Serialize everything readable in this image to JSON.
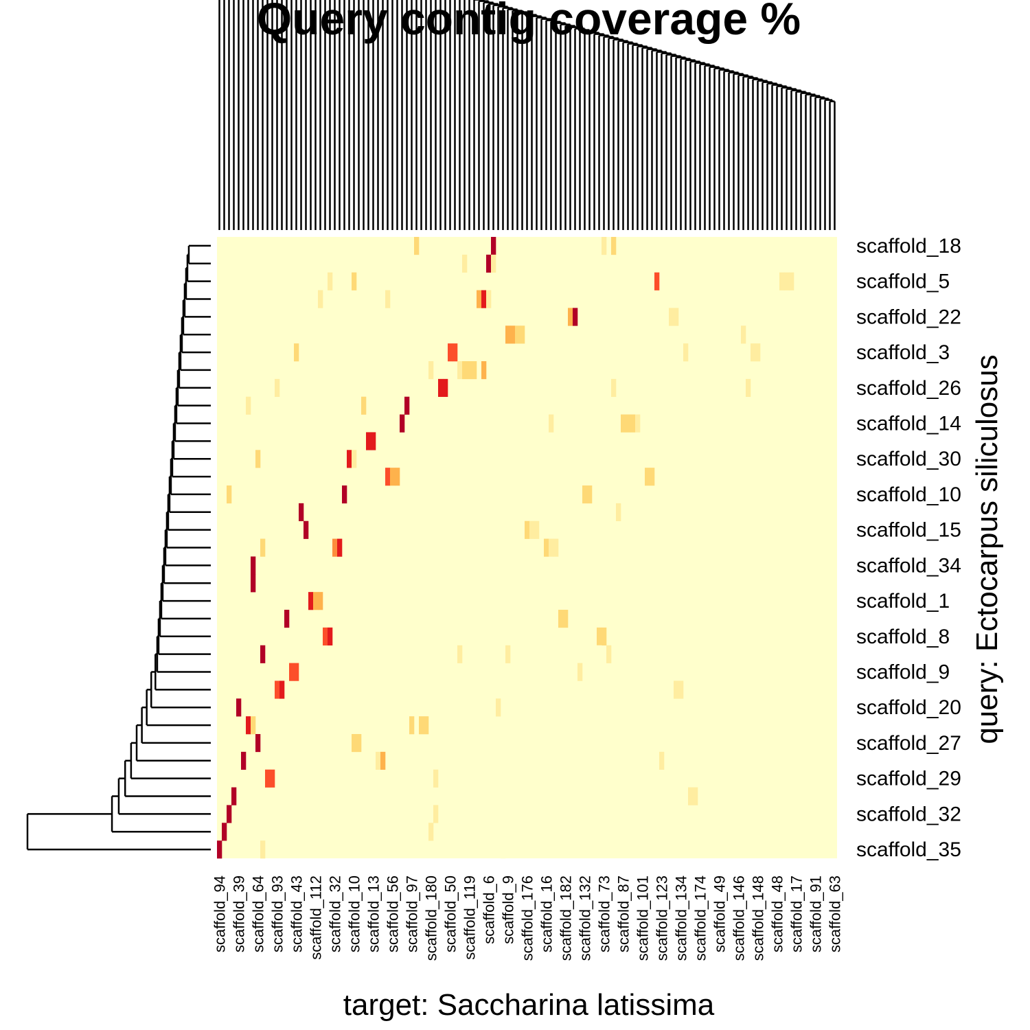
{
  "chart_data": {
    "type": "heatmap",
    "title": "Query contig coverage %",
    "x_label": "target: Saccharina latissima",
    "y_label": "query: Ectocarpus siliculosus",
    "zlim": [
      0,
      100
    ],
    "colors": [
      "#FFFFCC",
      "#FFEDA0",
      "#FED976",
      "#FEB24C",
      "#FD8D3C",
      "#FC4E2A",
      "#E31A1C",
      "#B10026"
    ],
    "categories": [
      "scaffold_94",
      null,
      null,
      null,
      "scaffold_39",
      null,
      null,
      null,
      "scaffold_64",
      null,
      null,
      null,
      "scaffold_93",
      null,
      null,
      null,
      "scaffold_43",
      null,
      null,
      null,
      "scaffold_112",
      null,
      null,
      null,
      "scaffold_32",
      null,
      null,
      null,
      "scaffold_10",
      null,
      null,
      null,
      "scaffold_13",
      null,
      null,
      null,
      "scaffold_56",
      null,
      null,
      null,
      "scaffold_97",
      null,
      null,
      null,
      "scaffold_180",
      null,
      null,
      null,
      "scaffold_50",
      null,
      null,
      null,
      "scaffold_119",
      null,
      null,
      null,
      "scaffold_6",
      null,
      null,
      null,
      "scaffold_9",
      null,
      null,
      null,
      "scaffold_176",
      null,
      null,
      null,
      "scaffold_16",
      null,
      null,
      null,
      "scaffold_182",
      null,
      null,
      null,
      "scaffold_132",
      null,
      null,
      null,
      "scaffold_73",
      null,
      null,
      null,
      "scaffold_87",
      null,
      null,
      null,
      "scaffold_101",
      null,
      null,
      null,
      "scaffold_123",
      null,
      null,
      null,
      "scaffold_134",
      null,
      null,
      null,
      "scaffold_174",
      null,
      null,
      null,
      "scaffold_49",
      null,
      null,
      null,
      "scaffold_146",
      null,
      null,
      null,
      "scaffold_148",
      null,
      null,
      null,
      "scaffold_48",
      null,
      null,
      null,
      "scaffold_17",
      null,
      null,
      null,
      "scaffold_91",
      null,
      null,
      null,
      "scaffold_63"
    ],
    "rows": [
      "scaffold_18",
      null,
      "scaffold_5",
      null,
      "scaffold_22",
      null,
      "scaffold_3",
      null,
      "scaffold_26",
      null,
      "scaffold_14",
      null,
      "scaffold_30",
      null,
      "scaffold_10",
      null,
      "scaffold_15",
      null,
      "scaffold_34",
      null,
      "scaffold_1",
      null,
      "scaffold_8",
      null,
      "scaffold_9",
      null,
      "scaffold_20",
      null,
      "scaffold_27",
      null,
      "scaffold_29",
      null,
      "scaffold_32",
      null,
      "scaffold_35"
    ],
    "cells": [
      [
        0,
        41,
        30
      ],
      [
        0,
        45,
        5
      ],
      [
        0,
        56,
        10
      ],
      [
        0,
        57,
        90
      ],
      [
        0,
        80,
        15
      ],
      [
        0,
        82,
        25
      ],
      [
        1,
        36,
        5
      ],
      [
        1,
        51,
        15
      ],
      [
        1,
        56,
        90
      ],
      [
        1,
        57,
        20
      ],
      [
        1,
        69,
        5
      ],
      [
        1,
        100,
        10
      ],
      [
        1,
        122,
        5
      ],
      [
        2,
        4,
        5
      ],
      [
        2,
        23,
        20
      ],
      [
        2,
        27,
        10
      ],
      [
        2,
        28,
        35
      ],
      [
        2,
        87,
        5
      ],
      [
        2,
        91,
        70
      ],
      [
        2,
        95,
        10
      ],
      [
        2,
        105,
        10
      ],
      [
        2,
        117,
        15
      ],
      [
        2,
        118,
        20
      ],
      [
        2,
        119,
        20
      ],
      [
        3,
        21,
        20
      ],
      [
        3,
        35,
        15
      ],
      [
        3,
        54,
        40
      ],
      [
        3,
        55,
        85
      ],
      [
        3,
        56,
        15
      ],
      [
        4,
        73,
        45
      ],
      [
        4,
        74,
        90
      ],
      [
        4,
        94,
        20
      ],
      [
        4,
        95,
        20
      ],
      [
        5,
        60,
        45
      ],
      [
        5,
        61,
        45
      ],
      [
        5,
        62,
        35
      ],
      [
        5,
        63,
        35
      ],
      [
        5,
        85,
        5
      ],
      [
        5,
        100,
        10
      ],
      [
        5,
        107,
        10
      ],
      [
        5,
        108,
        10
      ],
      [
        5,
        109,
        15
      ],
      [
        6,
        16,
        30
      ],
      [
        6,
        48,
        65
      ],
      [
        6,
        49,
        70
      ],
      [
        6,
        97,
        15
      ],
      [
        6,
        111,
        15
      ],
      [
        6,
        112,
        15
      ],
      [
        7,
        44,
        15
      ],
      [
        7,
        50,
        20
      ],
      [
        7,
        51,
        35
      ],
      [
        7,
        52,
        35
      ],
      [
        7,
        53,
        35
      ],
      [
        7,
        55,
        40
      ],
      [
        7,
        94,
        5
      ],
      [
        8,
        9,
        10
      ],
      [
        8,
        12,
        20
      ],
      [
        8,
        27,
        10
      ],
      [
        8,
        30,
        5
      ],
      [
        8,
        46,
        75
      ],
      [
        8,
        47,
        80
      ],
      [
        8,
        59,
        5
      ],
      [
        8,
        80,
        10
      ],
      [
        8,
        82,
        20
      ],
      [
        8,
        110,
        15
      ],
      [
        9,
        6,
        20
      ],
      [
        9,
        30,
        30
      ],
      [
        9,
        39,
        95
      ],
      [
        10,
        14,
        5
      ],
      [
        10,
        38,
        95
      ],
      [
        10,
        69,
        20
      ],
      [
        10,
        84,
        30
      ],
      [
        10,
        85,
        30
      ],
      [
        10,
        86,
        25
      ],
      [
        10,
        87,
        20
      ],
      [
        11,
        12,
        10
      ],
      [
        11,
        31,
        75
      ],
      [
        11,
        32,
        85
      ],
      [
        11,
        70,
        5
      ],
      [
        11,
        114,
        5
      ],
      [
        12,
        8,
        35
      ],
      [
        12,
        27,
        85
      ],
      [
        12,
        28,
        20
      ],
      [
        13,
        1,
        10
      ],
      [
        13,
        17,
        5
      ],
      [
        13,
        35,
        70
      ],
      [
        13,
        36,
        40
      ],
      [
        13,
        37,
        40
      ],
      [
        13,
        89,
        25
      ],
      [
        13,
        90,
        25
      ],
      [
        14,
        2,
        35
      ],
      [
        14,
        26,
        90
      ],
      [
        14,
        76,
        25
      ],
      [
        14,
        77,
        25
      ],
      [
        14,
        104,
        10
      ],
      [
        15,
        17,
        95
      ],
      [
        15,
        83,
        20
      ],
      [
        15,
        120,
        5
      ],
      [
        16,
        9,
        5
      ],
      [
        16,
        18,
        90
      ],
      [
        16,
        55,
        10
      ],
      [
        16,
        64,
        35
      ],
      [
        16,
        65,
        20
      ],
      [
        16,
        66,
        20
      ],
      [
        16,
        93,
        5
      ],
      [
        17,
        9,
        30
      ],
      [
        17,
        24,
        60
      ],
      [
        17,
        25,
        80
      ],
      [
        17,
        68,
        35
      ],
      [
        17,
        69,
        20
      ],
      [
        17,
        70,
        20
      ],
      [
        18,
        7,
        95
      ],
      [
        18,
        53,
        10
      ],
      [
        19,
        7,
        95
      ],
      [
        20,
        19,
        75
      ],
      [
        20,
        20,
        40
      ],
      [
        20,
        21,
        40
      ],
      [
        20,
        52,
        5
      ],
      [
        20,
        82,
        10
      ],
      [
        20,
        102,
        5
      ],
      [
        21,
        14,
        95
      ],
      [
        21,
        52,
        5
      ],
      [
        21,
        71,
        35
      ],
      [
        21,
        72,
        35
      ],
      [
        21,
        86,
        5
      ],
      [
        21,
        94,
        10
      ],
      [
        22,
        22,
        65
      ],
      [
        22,
        23,
        75
      ],
      [
        22,
        47,
        10
      ],
      [
        22,
        79,
        25
      ],
      [
        22,
        80,
        25
      ],
      [
        23,
        9,
        95
      ],
      [
        23,
        50,
        15
      ],
      [
        23,
        60,
        15
      ],
      [
        23,
        70,
        5
      ],
      [
        23,
        79,
        10
      ],
      [
        23,
        81,
        20
      ],
      [
        24,
        15,
        70
      ],
      [
        24,
        16,
        70
      ],
      [
        24,
        46,
        5
      ],
      [
        24,
        53,
        5
      ],
      [
        24,
        75,
        15
      ],
      [
        25,
        12,
        70
      ],
      [
        25,
        13,
        80
      ],
      [
        25,
        68,
        5
      ],
      [
        25,
        95,
        15
      ],
      [
        25,
        96,
        15
      ],
      [
        26,
        4,
        95
      ],
      [
        26,
        46,
        5
      ],
      [
        26,
        58,
        20
      ],
      [
        27,
        6,
        80
      ],
      [
        27,
        7,
        30
      ],
      [
        27,
        24,
        5
      ],
      [
        27,
        30,
        5
      ],
      [
        27,
        40,
        25
      ],
      [
        27,
        42,
        35
      ],
      [
        27,
        43,
        35
      ],
      [
        28,
        8,
        90
      ],
      [
        28,
        28,
        35
      ],
      [
        28,
        29,
        30
      ],
      [
        28,
        75,
        5
      ],
      [
        29,
        1,
        5
      ],
      [
        29,
        5,
        95
      ],
      [
        29,
        33,
        20
      ],
      [
        29,
        34,
        40
      ],
      [
        29,
        52,
        5
      ],
      [
        29,
        88,
        5
      ],
      [
        29,
        92,
        20
      ],
      [
        30,
        10,
        70
      ],
      [
        30,
        11,
        70
      ],
      [
        30,
        45,
        15
      ],
      [
        30,
        59,
        5
      ],
      [
        30,
        101,
        5
      ],
      [
        31,
        1,
        5
      ],
      [
        31,
        3,
        95
      ],
      [
        31,
        13,
        5
      ],
      [
        31,
        43,
        10
      ],
      [
        31,
        98,
        15
      ],
      [
        31,
        99,
        15
      ],
      [
        32,
        2,
        95
      ],
      [
        32,
        45,
        20
      ],
      [
        32,
        59,
        5
      ],
      [
        33,
        1,
        95
      ],
      [
        33,
        30,
        5
      ],
      [
        33,
        44,
        20
      ],
      [
        33,
        93,
        10
      ],
      [
        34,
        0,
        95
      ],
      [
        34,
        9,
        15
      ],
      [
        34,
        59,
        10
      ]
    ]
  }
}
